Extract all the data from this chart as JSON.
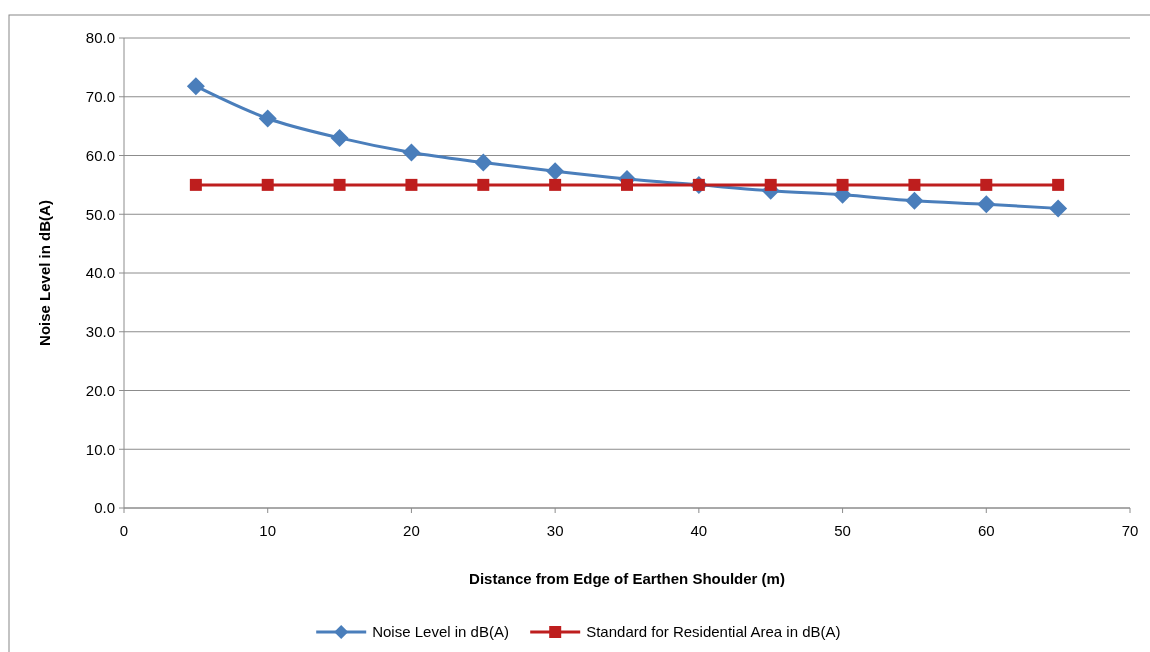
{
  "chart_data": {
    "type": "line",
    "xlabel": "Distance from Edge of Earthen Shoulder (m)",
    "ylabel": "Noise Level in dB(A)",
    "x": [
      5,
      10,
      15,
      20,
      25,
      30,
      35,
      40,
      45,
      50,
      55,
      60,
      65
    ],
    "series": [
      {
        "name": "Noise Level in dB(A)",
        "color": "#4a7ebb",
        "marker": "diamond",
        "values": [
          71.8,
          66.3,
          63.0,
          60.5,
          58.8,
          57.3,
          56.0,
          55.0,
          54.0,
          53.3,
          52.3,
          51.7,
          51.0
        ]
      },
      {
        "name": "Standard for Residential Area in dB(A)",
        "color": "#be1e1e",
        "marker": "square",
        "values": [
          55,
          55,
          55,
          55,
          55,
          55,
          55,
          55,
          55,
          55,
          55,
          55,
          55
        ]
      }
    ],
    "xlim": [
      0,
      70
    ],
    "xticks": [
      0,
      10,
      20,
      30,
      40,
      50,
      60,
      70
    ],
    "ylim": [
      0,
      80
    ],
    "yticks": [
      {
        "value": 0,
        "label": "0.0"
      },
      {
        "value": 10,
        "label": "10.0"
      },
      {
        "value": 20,
        "label": "20.0"
      },
      {
        "value": 30,
        "label": "30.0"
      },
      {
        "value": 40,
        "label": "40.0"
      },
      {
        "value": 50,
        "label": "50.0"
      },
      {
        "value": 60,
        "label": "60.0"
      },
      {
        "value": 70,
        "label": "70.0"
      },
      {
        "value": 80,
        "label": "80.0"
      }
    ],
    "grid": "y",
    "legend": "bottom",
    "line_style": "solid"
  }
}
